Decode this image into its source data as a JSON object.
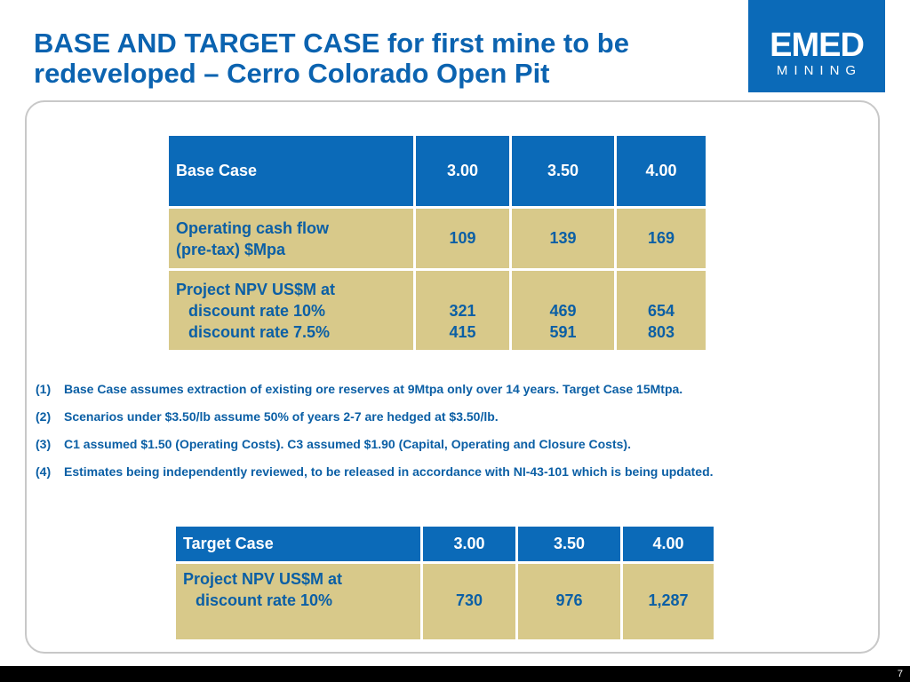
{
  "slide": {
    "title": "BASE AND TARGET CASE for first mine to be redeveloped – Cerro Colorado Open Pit",
    "page_number": "7"
  },
  "logo": {
    "line1": "EMED",
    "line2": "MINING"
  },
  "base_table": {
    "headers": [
      "Base Case",
      "3.00",
      "3.50",
      "4.00"
    ],
    "row1": {
      "label_line1": "Operating cash flow",
      "label_line2": "(pre-tax) $Mpa",
      "values": [
        "109",
        "139",
        "169"
      ]
    },
    "row2": {
      "label_line1": "Project NPV US$M at",
      "label_line2": "discount rate 10%",
      "label_line3": "discount rate 7.5%",
      "values_10": [
        "321",
        "469",
        "654"
      ],
      "values_75": [
        "415",
        "591",
        "803"
      ]
    }
  },
  "notes": [
    {
      "num": "(1)",
      "text": "Base Case assumes extraction of existing ore reserves at 9Mtpa only over 14 years. Target Case 15Mtpa."
    },
    {
      "num": "(2)",
      "text": "Scenarios under $3.50/lb assume 50% of years 2-7 are hedged at $3.50/lb."
    },
    {
      "num": "(3)",
      "text": "C1 assumed $1.50 (Operating Costs). C3 assumed $1.90 (Capital, Operating and Closure Costs)."
    },
    {
      "num": "(4)",
      "text": "Estimates being independently reviewed, to be released in accordance with NI-43-101 which is being updated."
    }
  ],
  "target_table": {
    "headers": [
      "Target Case",
      "3.00",
      "3.50",
      "4.00"
    ],
    "row1": {
      "label_line1": "Project NPV US$M at",
      "label_line2": "discount rate 10%",
      "values": [
        "730",
        "976",
        "1,287"
      ]
    }
  }
}
